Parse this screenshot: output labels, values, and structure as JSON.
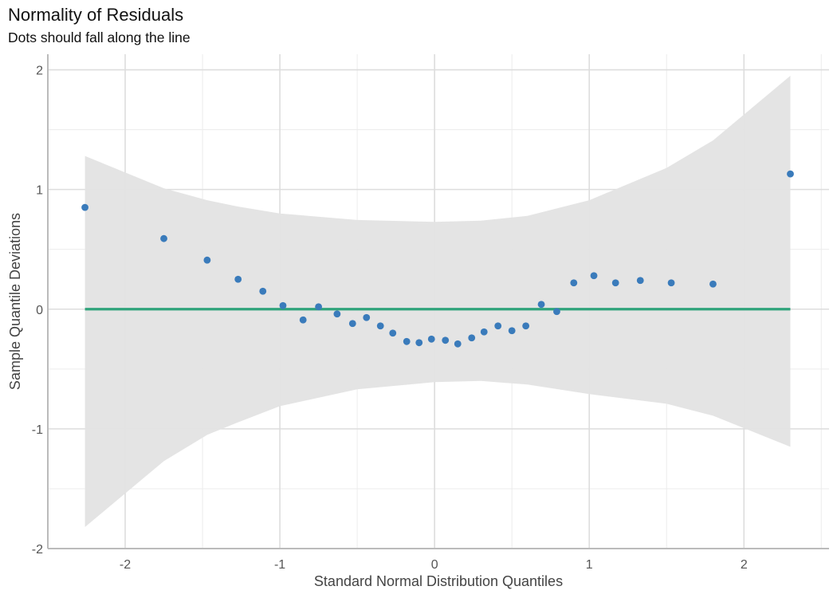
{
  "title": "Normality of Residuals",
  "subtitle": "Dots should fall along the line",
  "colors": {
    "points": "#3a7bbb",
    "line": "#2fa37b",
    "band": "#e3e3e3",
    "grid_major": "#dddddd",
    "grid_minor": "#ececec",
    "axis": "#bbbbbb"
  },
  "chart_data": {
    "type": "scatter",
    "title": "Normality of Residuals",
    "subtitle": "Dots should fall along the line",
    "xlabel": "Standard Normal Distribution Quantiles",
    "ylabel": "Sample Quantile Deviations",
    "xlim": [
      -2.5,
      2.55
    ],
    "ylim": [
      -2.0,
      2.13
    ],
    "x_ticks": [
      "-2",
      "-1",
      "0",
      "1",
      "2"
    ],
    "y_ticks": [
      "-2",
      "-1",
      "0",
      "1",
      "2"
    ],
    "grid": true,
    "reference_line": {
      "y": 0,
      "x_range": [
        -2.26,
        2.3
      ]
    },
    "confidence_band": {
      "x": [
        -2.26,
        -1.75,
        -1.47,
        -1.28,
        -1.0,
        -0.5,
        0.0,
        0.3,
        0.6,
        1.0,
        1.5,
        1.8,
        2.3
      ],
      "upper": [
        1.28,
        1.01,
        0.91,
        0.86,
        0.8,
        0.745,
        0.73,
        0.74,
        0.78,
        0.91,
        1.18,
        1.41,
        1.95
      ],
      "lower": [
        -1.82,
        -1.27,
        -1.05,
        -0.95,
        -0.81,
        -0.67,
        -0.61,
        -0.6,
        -0.63,
        -0.71,
        -0.79,
        -0.89,
        -1.15
      ]
    },
    "series": [
      {
        "x": [
          -2.26,
          -1.75,
          -1.47,
          -1.27,
          -1.11,
          -0.98,
          -0.85,
          -0.75,
          -0.63,
          -0.53,
          -0.44,
          -0.35,
          -0.27,
          -0.18,
          -0.1,
          -0.02,
          0.07,
          0.15,
          0.24,
          0.32,
          0.41,
          0.5,
          0.59,
          0.69,
          0.79,
          0.9,
          1.03,
          1.17,
          1.33,
          1.53,
          1.8,
          2.3
        ],
        "y": [
          0.85,
          0.59,
          0.41,
          0.25,
          0.15,
          0.03,
          -0.09,
          0.02,
          -0.04,
          -0.12,
          -0.07,
          -0.14,
          -0.2,
          -0.27,
          -0.28,
          -0.25,
          -0.26,
          -0.29,
          -0.24,
          -0.19,
          -0.14,
          -0.18,
          -0.14,
          0.04,
          -0.02,
          0.22,
          0.28,
          0.22,
          0.24,
          0.22,
          0.21,
          1.13
        ]
      }
    ]
  }
}
